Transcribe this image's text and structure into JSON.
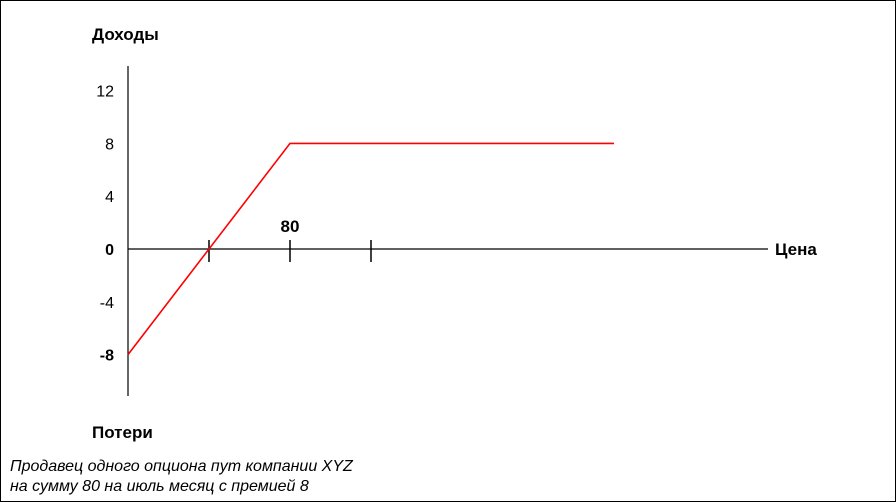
{
  "chart_data": {
    "type": "line",
    "ylabel": "Доходы",
    "ylabel_bottom": "Потери",
    "xlabel": "Цена",
    "y_ticks": [
      12,
      8,
      4,
      0,
      -4,
      -8
    ],
    "y_tick_labels": [
      "12",
      "8",
      "4",
      "0",
      "-4",
      "-8"
    ],
    "bold_y_ticks": [
      "0",
      "-8"
    ],
    "x_tick_label": "80",
    "x_tick_label_value": 80,
    "ylim": [
      -8,
      12
    ],
    "series": [
      {
        "color": "#ff0000",
        "x": [
          60,
          80,
          120
        ],
        "y": [
          -8,
          8,
          8
        ]
      }
    ],
    "x_axis_ticks": [
      70,
      80,
      90
    ],
    "xlim": [
      60,
      100
    ]
  },
  "caption": {
    "line1": "Продавец одного опциона пут компании XYZ",
    "line2": "на сумму 80 на июль месяц с премией 8"
  }
}
